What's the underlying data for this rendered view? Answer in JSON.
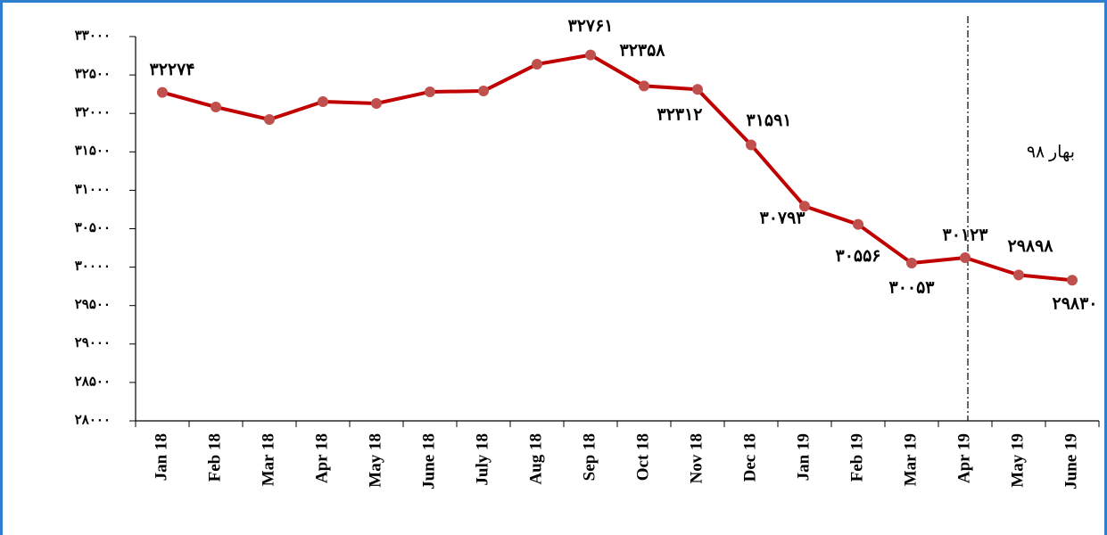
{
  "chart_data": {
    "type": "line",
    "annotation": "بهار ۹۸",
    "categories": [
      "Jan 18",
      "Feb 18",
      "Mar 18",
      "Apr 18",
      "May 18",
      "June 18",
      "July 18",
      "Aug 18",
      "Sep 18",
      "Oct 18",
      "Nov 18",
      "Dec 18",
      "Jan 19",
      "Feb 19",
      "Mar 19",
      "Apr 19",
      "May 19",
      "June 19"
    ],
    "series": [
      {
        "color": "#c00000",
        "values": [
          32274,
          32083,
          31921,
          32153,
          32130,
          32281,
          32292,
          32640,
          32761,
          32358,
          32312,
          31591,
          30793,
          30556,
          30053,
          30123,
          29898,
          29830
        ],
        "value_labels": [
          "۳۲۲۷۴",
          null,
          null,
          null,
          null,
          null,
          null,
          null,
          "۳۲۷۶۱",
          "۳۲۳۵۸",
          "۳۲۳۱۲",
          "۳۱۵۹۱",
          "۳۰۷۹۳",
          "۳۰۵۵۶",
          "۳۰۰۵۳",
          "۳۰۱۲۳",
          "۲۹۸۹۸",
          "۲۹۸۳۰"
        ]
      }
    ],
    "ylim": [
      28000,
      33000
    ],
    "yticks": [
      {
        "value": 28000,
        "label": "۲۸۰۰۰"
      },
      {
        "value": 28500,
        "label": "۲۸۵۰۰"
      },
      {
        "value": 29000,
        "label": "۲۹۰۰۰"
      },
      {
        "value": 29500,
        "label": "۲۹۵۰۰"
      },
      {
        "value": 30000,
        "label": "۳۰۰۰۰"
      },
      {
        "value": 30500,
        "label": "۳۰۵۰۰"
      },
      {
        "value": 31000,
        "label": "۳۱۰۰۰"
      },
      {
        "value": 31500,
        "label": "۳۱۵۰۰"
      },
      {
        "value": 32000,
        "label": "۳۲۰۰۰"
      },
      {
        "value": 32500,
        "label": "۳۲۵۰۰"
      },
      {
        "value": 33000,
        "label": "۳۳۰۰۰"
      }
    ],
    "marker_color": "#c0504d"
  }
}
